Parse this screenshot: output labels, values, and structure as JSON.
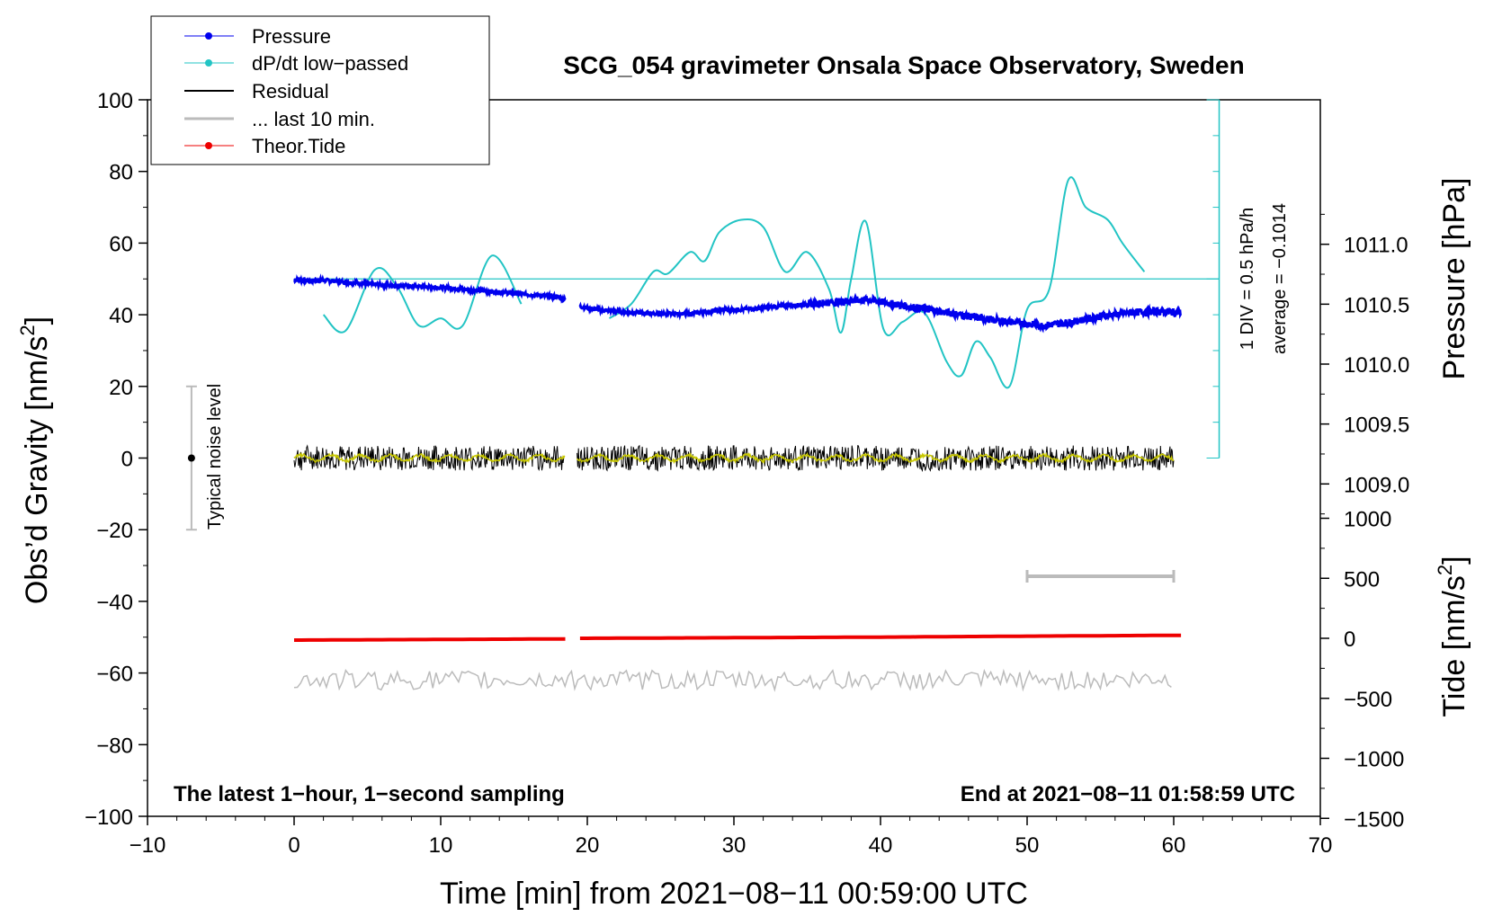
{
  "chart_data": {
    "type": "line",
    "title": "SCG_054 gravimeter Onsala Space Observatory, Sweden",
    "xlabel": "Time [min] from 2021−08−11 00:59:00 UTC",
    "ylabel_left": "Obs’d Gravity [nm/s",
    "ylabel_left_sup": "2",
    "ylabel_left_close": "]",
    "ylabel_right_pressure": "Pressure [hPa]",
    "ylabel_right_tide": "Tide [nm/s",
    "ylabel_right_tide_sup": "2",
    "ylabel_right_tide_close": "]",
    "xlim": [
      -10,
      70
    ],
    "ylim": [
      -100,
      100
    ],
    "x_ticks": [
      "−10",
      "0",
      "10",
      "20",
      "30",
      "40",
      "50",
      "60",
      "70"
    ],
    "y_ticks": [
      "100",
      "80",
      "60",
      "40",
      "20",
      "0",
      "−20",
      "−40",
      "−60",
      "−80",
      "−100"
    ],
    "pressure_ticks": [
      "1011.0",
      "1010.5",
      "1010.0",
      "1009.5",
      "1009.0"
    ],
    "tide_ticks": [
      "1000",
      "500",
      "0",
      "−500",
      "−1000",
      "−1500"
    ],
    "legend": [
      "Pressure",
      "dP/dt low−passed",
      "Residual",
      "... last 10 min.",
      "Theor.Tide"
    ],
    "annotations": {
      "bottom_left": "The latest 1−hour, 1−second sampling",
      "bottom_right": "End at 2021−08−11 01:58:59 UTC",
      "noise_label": "Typical noise level",
      "div_label": "1 DIV = 0.5 hPa/h",
      "average_label": "average = −0.1014"
    },
    "colors": {
      "pressure": "#0000ee",
      "dpdt": "#22c4c4",
      "residual": "#000000",
      "residual_smooth": "#c8c800",
      "last10": "#bbbbbb",
      "tide": "#ee0000"
    },
    "pressure_hPa": {
      "x": [
        0,
        2,
        4,
        6,
        8,
        10,
        12,
        14,
        16,
        18,
        19.5,
        21,
        23,
        25,
        27,
        29,
        31,
        33,
        35,
        37,
        39,
        41,
        43,
        45,
        47,
        49,
        51,
        53,
        55,
        57,
        59,
        60.5
      ],
      "y": [
        1010.7,
        1010.7,
        1010.68,
        1010.66,
        1010.65,
        1010.64,
        1010.62,
        1010.6,
        1010.58,
        1010.56,
        1010.48,
        1010.45,
        1010.43,
        1010.42,
        1010.42,
        1010.45,
        1010.46,
        1010.48,
        1010.5,
        1010.52,
        1010.54,
        1010.5,
        1010.46,
        1010.42,
        1010.38,
        1010.35,
        1010.32,
        1010.35,
        1010.4,
        1010.43,
        1010.44,
        1010.43
      ]
    },
    "dpdt_segments": [
      {
        "x": [
          2,
          3.5,
          5.5,
          7,
          8.5,
          10,
          11.5,
          13.5,
          15.5
        ],
        "y": [
          40,
          35.5,
          52.5,
          48,
          37,
          39,
          37,
          56.5,
          43
        ]
      },
      {
        "x": [
          21.5,
          23,
          24.5,
          25.5,
          27,
          28,
          29,
          30.5,
          32,
          33.5,
          35,
          36.5,
          37.3,
          38,
          39,
          40.2,
          41.5,
          43,
          44.5,
          45.5,
          46.5,
          47.5,
          48.8,
          50,
          51.5,
          52.8,
          54,
          55.5,
          56.5,
          58
        ],
        "y": [
          39,
          43,
          52,
          51.5,
          57.5,
          55,
          63,
          66.5,
          64.5,
          52,
          57.5,
          47,
          35,
          50,
          66,
          36,
          38,
          40.5,
          27,
          23,
          32.5,
          28,
          20,
          41.5,
          47,
          77.5,
          70,
          66.5,
          60,
          52
        ]
      }
    ],
    "dpdt_zero_level": 50,
    "residual_range": [
      -4,
      4
    ],
    "tide_nm_s2": {
      "x": [
        0,
        18.5,
        19.5,
        30,
        40,
        50,
        60.5
      ],
      "y": [
        -15,
        -5,
        0,
        5,
        10,
        18,
        25
      ]
    },
    "last_10_min_segment": [
      50,
      60
    ],
    "last_10_min_level": -33,
    "noise_level": {
      "x": -7,
      "y": 0,
      "range": [
        -20,
        20
      ]
    },
    "residual_offset_gray": -62
  }
}
